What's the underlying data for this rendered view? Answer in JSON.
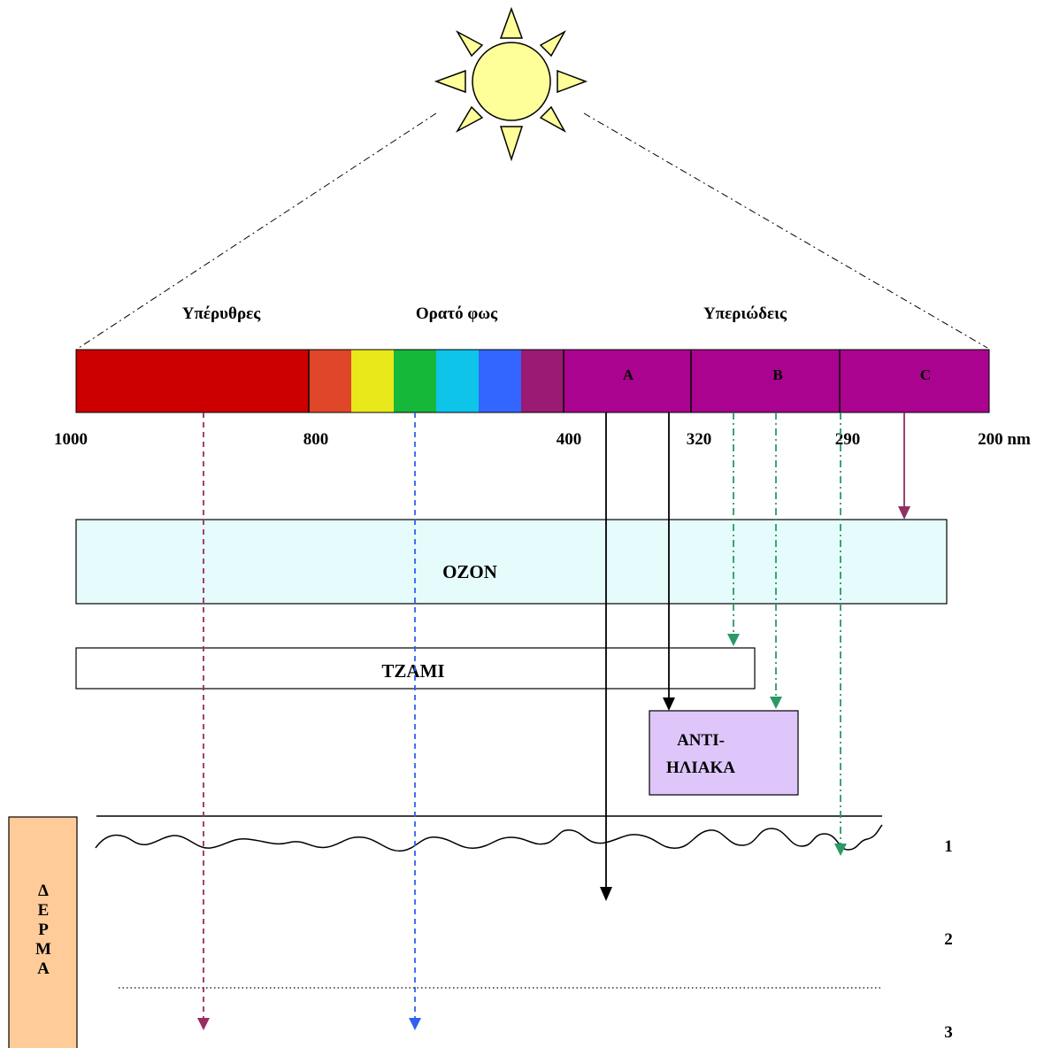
{
  "region_labels": {
    "infrared": "Υπέρυθρες",
    "visible": "Ορατό φως",
    "ultraviolet": "Υπεριώδεις"
  },
  "uv_bands": {
    "a": "A",
    "b": "B",
    "c": "C"
  },
  "wavelength_ticks": [
    "1000",
    "800",
    "400",
    "320",
    "290",
    "200 nm"
  ],
  "layers": {
    "ozone": "OZON",
    "glass": "TZAMI",
    "sunscreen_line1": "ΑΝΤΙ-",
    "sunscreen_line2": "ΗΛΙΑΚΑ"
  },
  "skin": {
    "label_letters": [
      "Δ",
      "Ε",
      "Ρ",
      "Μ",
      "Α"
    ],
    "layer_numbers": [
      "1",
      "2",
      "3"
    ]
  },
  "colors": {
    "sun": "#ffff99",
    "infrared": "#cc0000",
    "orange": "#e0462a",
    "yellow": "#e8e81a",
    "green": "#16b83a",
    "cyan": "#0ec4e8",
    "blue": "#3366ff",
    "violet": "#9b1a73",
    "uv": "#a9038f",
    "ozone_fill": "#e6fcfc",
    "sunscreen_fill": "#dec6fb",
    "skin_fill": "#ffcc99",
    "arrow_ir": "#9b2b63",
    "arrow_visible": "#2f60f0",
    "arrow_uvb": "#2a9966",
    "arrow_uvc": "#8f3063"
  }
}
